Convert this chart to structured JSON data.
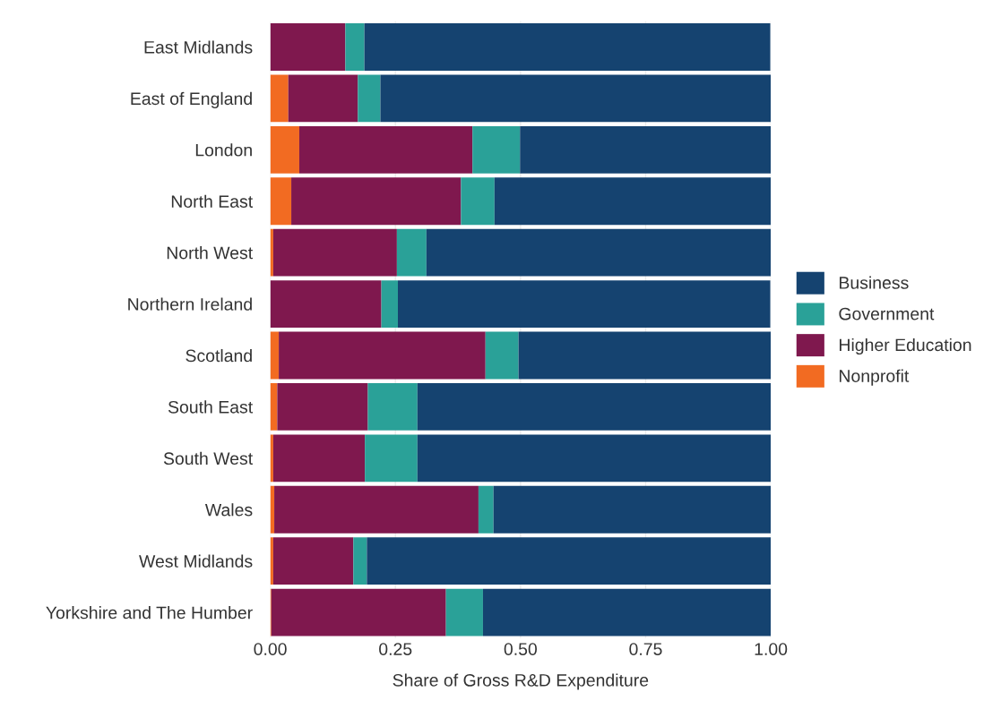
{
  "chart_data": {
    "type": "bar",
    "orientation": "horizontal",
    "stacked": true,
    "xlabel": "Share of Gross R&D Expenditure",
    "categories": [
      "East Midlands",
      "East of England",
      "London",
      "North East",
      "North West",
      "Northern Ireland",
      "Scotland",
      "South East",
      "South West",
      "Wales",
      "West Midlands",
      "Yorkshire and The Humber"
    ],
    "series": [
      {
        "name": "Nonprofit",
        "color": "#f26b22",
        "values": [
          0,
          0.036,
          0.058,
          0.042,
          0.006,
          0,
          0.017,
          0.014,
          0.006,
          0.008,
          0.006,
          0.002
        ]
      },
      {
        "name": "Higher Education",
        "color": "#7f184e",
        "values": [
          0.15,
          0.139,
          0.346,
          0.339,
          0.247,
          0.222,
          0.413,
          0.181,
          0.183,
          0.408,
          0.16,
          0.349
        ]
      },
      {
        "name": "Government",
        "color": "#2aa198",
        "values": [
          0.038,
          0.045,
          0.095,
          0.067,
          0.059,
          0.033,
          0.066,
          0.099,
          0.105,
          0.03,
          0.027,
          0.074
        ]
      },
      {
        "name": "Business",
        "color": "#154370",
        "values": [
          0.811,
          0.78,
          0.501,
          0.552,
          0.688,
          0.744,
          0.504,
          0.706,
          0.706,
          0.554,
          0.807,
          0.575
        ]
      }
    ],
    "xlim": [
      0,
      1
    ],
    "xticks": [
      {
        "value": 0,
        "label": "0.00"
      },
      {
        "value": 0.25,
        "label": "0.25"
      },
      {
        "value": 0.5,
        "label": "0.50"
      },
      {
        "value": 0.75,
        "label": "0.75"
      },
      {
        "value": 1,
        "label": "1.00"
      }
    ],
    "grid": "x",
    "legend": "right"
  }
}
